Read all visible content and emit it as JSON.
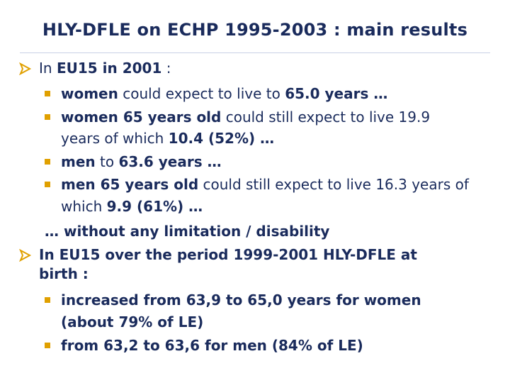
{
  "title": "HLY-DFLE on ECHP 1995-2003 : main results",
  "bullets": {
    "b1": {
      "t1": "In ",
      "t2": "EU15 in 2001",
      "t3": " :"
    },
    "s1": {
      "t1": "women",
      "t2": " could expect to live to ",
      "t3": "65.0 years …"
    },
    "s2": {
      "t1": "women 65 years old",
      "t2": " could still expect to live 19.9",
      "t3": "years of which ",
      "t4": "10.4 (52%) …"
    },
    "s3": {
      "t1": "men",
      "t2": " to ",
      "t3": "63.6 years …"
    },
    "s4": {
      "t1": "men 65 years old",
      "t2": " could still expect to live 16.3 years of",
      "t3": "which ",
      "t4": "9.9 (61%) …"
    },
    "note": "… without any limitation / disability",
    "b2": {
      "l1": "In EU15 over the period 1999-2001 HLY-DFLE at",
      "l2": "birth :"
    },
    "s5": {
      "l1": "increased from 63,9 to 65,0 years for women",
      "l2": "(about 79% of LE)"
    },
    "s6": "from 63,2 to 63,6 for men (84% of LE)"
  },
  "colors": {
    "text": "#1a2b5c",
    "bullet": "#e0a000",
    "rule": "#c9d1e6"
  },
  "icons": {
    "top_bullet": "arrow-bullet-icon",
    "sub_bullet": "square-bullet-icon"
  }
}
